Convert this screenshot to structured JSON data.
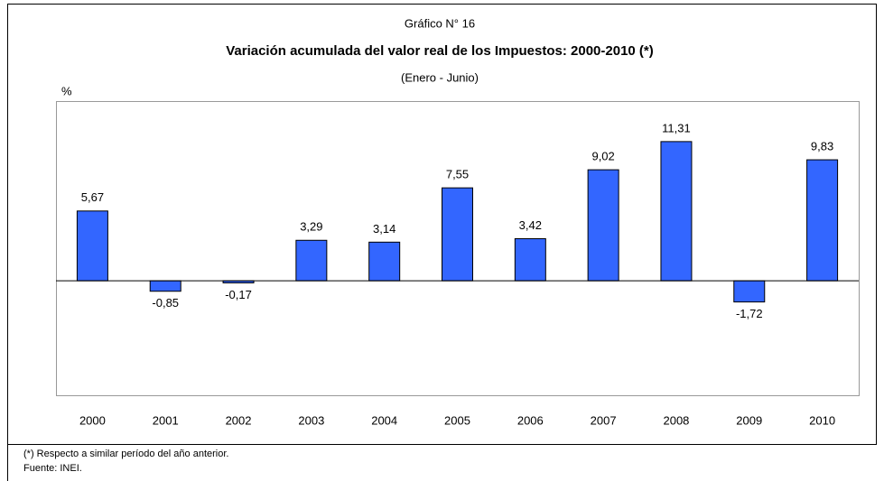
{
  "chart_data": {
    "type": "bar",
    "label": "Gráfico N° 16",
    "title": "Variación acumulada del valor real de los Impuestos: 2000-2010 (*)",
    "subtitle": "(Enero - Junio)",
    "y_axis_label": "%",
    "categories": [
      "2000",
      "2001",
      "2002",
      "2003",
      "2004",
      "2005",
      "2006",
      "2007",
      "2008",
      "2009",
      "2010"
    ],
    "values": [
      5.67,
      -0.85,
      -0.17,
      3.29,
      3.14,
      7.55,
      3.42,
      9.02,
      11.31,
      -1.72,
      9.83
    ],
    "value_labels": [
      "5,67",
      "-0,85",
      "-0,17",
      "3,29",
      "3,14",
      "7,55",
      "3,42",
      "9,02",
      "11,31",
      "-1,72",
      "9,83"
    ],
    "color": "#3366ff",
    "ylim": [
      -9.3,
      14.6
    ],
    "notes": [
      "(*) Respecto a similar período del año anterior.",
      "Fuente: INEI."
    ]
  }
}
